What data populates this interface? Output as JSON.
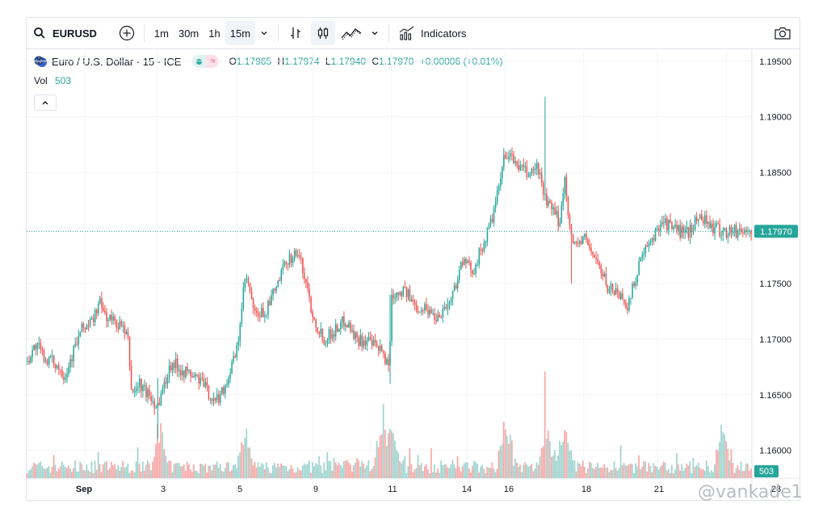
{
  "toolbar": {
    "symbol": "EURUSD",
    "intervals": [
      "1m",
      "30m",
      "1h",
      "15m"
    ],
    "active_interval": "15m",
    "indicators_label": "Indicators"
  },
  "legend": {
    "title": "Euro / U.S. Dollar · 15 · ICE",
    "open_label": "O",
    "open": "1.17965",
    "high_label": "H",
    "high": "1.17974",
    "low_label": "L",
    "low": "1.17940",
    "close_label": "C",
    "close": "1.17970",
    "change": "+0.00006 (+0.01%)",
    "volume_label": "Vol",
    "volume": "503"
  },
  "watermark": "@vankade1",
  "colors": {
    "up": "#26a69a",
    "down": "#ef5350",
    "vol_up": "#9fd4cf",
    "vol_down": "#f7a9a7",
    "price_line": "#26a69a"
  },
  "chart_data": {
    "type": "candlestick",
    "symbol": "EURUSD",
    "interval": "15",
    "x_tick_labels": [
      "Sep",
      "3",
      "5",
      "9",
      "11",
      "14",
      "16",
      "18",
      "21",
      "23"
    ],
    "y_tick_labels": [
      "1.19500",
      "1.19000",
      "1.18500",
      "1.18000",
      "1.17500",
      "1.17000",
      "1.16500",
      "1.16000"
    ],
    "ylim": [
      1.1575,
      1.196
    ],
    "last_price": 1.1797,
    "last_price_label": "1.17970",
    "last_volume_label": "503",
    "grid": true,
    "close_path": [
      {
        "x": 0.0,
        "y": 1.168
      },
      {
        "x": 0.013,
        "y": 1.1695
      },
      {
        "x": 0.025,
        "y": 1.1683
      },
      {
        "x": 0.04,
        "y": 1.1678
      },
      {
        "x": 0.053,
        "y": 1.1668
      },
      {
        "x": 0.066,
        "y": 1.1692
      },
      {
        "x": 0.077,
        "y": 1.171
      },
      {
        "x": 0.09,
        "y": 1.1715
      },
      {
        "x": 0.1,
        "y": 1.1733
      },
      {
        "x": 0.11,
        "y": 1.172
      },
      {
        "x": 0.13,
        "y": 1.1712
      },
      {
        "x": 0.14,
        "y": 1.1698
      },
      {
        "x": 0.145,
        "y": 1.165
      },
      {
        "x": 0.155,
        "y": 1.166
      },
      {
        "x": 0.17,
        "y": 1.1648
      },
      {
        "x": 0.18,
        "y": 1.164
      },
      {
        "x": 0.2,
        "y": 1.168
      },
      {
        "x": 0.215,
        "y": 1.1672
      },
      {
        "x": 0.24,
        "y": 1.1663
      },
      {
        "x": 0.26,
        "y": 1.1643
      },
      {
        "x": 0.275,
        "y": 1.166
      },
      {
        "x": 0.29,
        "y": 1.169
      },
      {
        "x": 0.302,
        "y": 1.1758
      },
      {
        "x": 0.315,
        "y": 1.172
      },
      {
        "x": 0.33,
        "y": 1.1725
      },
      {
        "x": 0.345,
        "y": 1.1748
      },
      {
        "x": 0.36,
        "y": 1.1772
      },
      {
        "x": 0.374,
        "y": 1.1778
      },
      {
        "x": 0.385,
        "y": 1.1752
      },
      {
        "x": 0.395,
        "y": 1.172
      },
      {
        "x": 0.41,
        "y": 1.17
      },
      {
        "x": 0.425,
        "y": 1.1708
      },
      {
        "x": 0.44,
        "y": 1.1718
      },
      {
        "x": 0.455,
        "y": 1.17
      },
      {
        "x": 0.47,
        "y": 1.1698
      },
      {
        "x": 0.49,
        "y": 1.1688
      },
      {
        "x": 0.5,
        "y": 1.1675
      },
      {
        "x": 0.503,
        "y": 1.174
      },
      {
        "x": 0.52,
        "y": 1.1745
      },
      {
        "x": 0.535,
        "y": 1.173
      },
      {
        "x": 0.55,
        "y": 1.1728
      },
      {
        "x": 0.565,
        "y": 1.172
      },
      {
        "x": 0.585,
        "y": 1.1735
      },
      {
        "x": 0.6,
        "y": 1.177
      },
      {
        "x": 0.615,
        "y": 1.1762
      },
      {
        "x": 0.63,
        "y": 1.1785
      },
      {
        "x": 0.645,
        "y": 1.1815
      },
      {
        "x": 0.66,
        "y": 1.1868
      },
      {
        "x": 0.675,
        "y": 1.1858
      },
      {
        "x": 0.69,
        "y": 1.1848
      },
      {
        "x": 0.705,
        "y": 1.1855
      },
      {
        "x": 0.715,
        "y": 1.1825
      },
      {
        "x": 0.735,
        "y": 1.1805
      },
      {
        "x": 0.742,
        "y": 1.1845
      },
      {
        "x": 0.752,
        "y": 1.1785
      },
      {
        "x": 0.77,
        "y": 1.179
      },
      {
        "x": 0.785,
        "y": 1.1772
      },
      {
        "x": 0.8,
        "y": 1.1748
      },
      {
        "x": 0.815,
        "y": 1.1742
      },
      {
        "x": 0.83,
        "y": 1.173
      },
      {
        "x": 0.845,
        "y": 1.177
      },
      {
        "x": 0.86,
        "y": 1.1785
      },
      {
        "x": 0.875,
        "y": 1.1808
      },
      {
        "x": 0.89,
        "y": 1.18
      },
      {
        "x": 0.91,
        "y": 1.1795
      },
      {
        "x": 0.93,
        "y": 1.1812
      },
      {
        "x": 0.945,
        "y": 1.18
      },
      {
        "x": 0.96,
        "y": 1.1797
      }
    ],
    "spikes": [
      {
        "x": 0.715,
        "high": 1.1918,
        "low": 1.1825
      },
      {
        "x": 0.752,
        "high": 1.18,
        "low": 1.175
      },
      {
        "x": 0.502,
        "high": 1.174,
        "low": 1.166
      },
      {
        "x": 0.18,
        "high": 1.1665,
        "low": 1.161
      }
    ],
    "volume_spikes": [
      0.183,
      0.302,
      0.49,
      0.503,
      0.66,
      0.715,
      0.742,
      0.96
    ]
  }
}
